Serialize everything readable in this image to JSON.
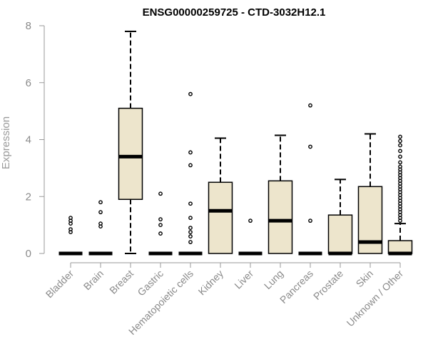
{
  "chart_data": {
    "type": "boxplot",
    "title": "ENSG00000259725 - CTD-3032H12.1",
    "xlabel": "",
    "ylabel": "Expression",
    "ylim": [
      0,
      8
    ],
    "yticks": [
      0,
      2,
      4,
      6,
      8
    ],
    "grid": false,
    "legend": "none",
    "colors": {
      "box_fill": "#ede5cc",
      "stroke": "#000000",
      "axis": "#9a9a9a"
    },
    "categories": [
      "Bladder",
      "Brain",
      "Breast",
      "Gastric",
      "Hematopoietic cells",
      "Kidney",
      "Liver",
      "Lung",
      "Pancreas",
      "Prostate",
      "Skin",
      "Unknown / Other"
    ],
    "boxes": [
      {
        "category": "Bladder",
        "q1": 0,
        "median": 0,
        "q3": 0,
        "whisker_low": 0,
        "whisker_high": 0,
        "outliers": [
          0.75,
          0.85,
          1.05,
          1.15,
          1.25
        ]
      },
      {
        "category": "Brain",
        "q1": 0,
        "median": 0,
        "q3": 0,
        "whisker_low": 0,
        "whisker_high": 0,
        "outliers": [
          0.95,
          1.05,
          1.45,
          1.8
        ]
      },
      {
        "category": "Breast",
        "q1": 1.9,
        "median": 3.4,
        "q3": 5.1,
        "whisker_low": 0,
        "whisker_high": 7.8,
        "outliers": []
      },
      {
        "category": "Gastric",
        "q1": 0,
        "median": 0,
        "q3": 0,
        "whisker_low": 0,
        "whisker_high": 0,
        "outliers": [
          0.7,
          1.0,
          1.2,
          2.1
        ]
      },
      {
        "category": "Hematopoietic cells",
        "q1": 0,
        "median": 0,
        "q3": 0,
        "whisker_low": 0,
        "whisker_high": 0,
        "outliers": [
          0.4,
          0.6,
          0.75,
          0.9,
          1.25,
          1.75,
          3.1,
          3.55,
          5.6
        ]
      },
      {
        "category": "Kidney",
        "q1": 0,
        "median": 1.5,
        "q3": 2.5,
        "whisker_low": 0,
        "whisker_high": 4.05,
        "outliers": []
      },
      {
        "category": "Liver",
        "q1": 0,
        "median": 0,
        "q3": 0,
        "whisker_low": 0,
        "whisker_high": 0,
        "outliers": [
          1.15
        ]
      },
      {
        "category": "Lung",
        "q1": 0,
        "median": 1.15,
        "q3": 2.55,
        "whisker_low": 0,
        "whisker_high": 4.15,
        "outliers": []
      },
      {
        "category": "Pancreas",
        "q1": 0,
        "median": 0,
        "q3": 0,
        "whisker_low": 0,
        "whisker_high": 0,
        "outliers": [
          1.15,
          3.75,
          5.2
        ]
      },
      {
        "category": "Prostate",
        "q1": 0,
        "median": 0,
        "q3": 1.35,
        "whisker_low": 0,
        "whisker_high": 2.6,
        "outliers": []
      },
      {
        "category": "Skin",
        "q1": 0,
        "median": 0.4,
        "q3": 2.35,
        "whisker_low": 0,
        "whisker_high": 4.2,
        "outliers": []
      },
      {
        "category": "Unknown / Other",
        "q1": 0,
        "median": 0,
        "q3": 0.45,
        "whisker_low": 0,
        "whisker_high": 1.05,
        "outliers": [
          1.15,
          1.25,
          1.35,
          1.45,
          1.55,
          1.65,
          1.75,
          1.85,
          1.95,
          2.05,
          2.15,
          2.25,
          2.35,
          2.45,
          2.55,
          2.65,
          2.75,
          2.85,
          2.95,
          3.05,
          3.2,
          3.4,
          3.6,
          3.8,
          3.95,
          4.1
        ]
      }
    ]
  }
}
